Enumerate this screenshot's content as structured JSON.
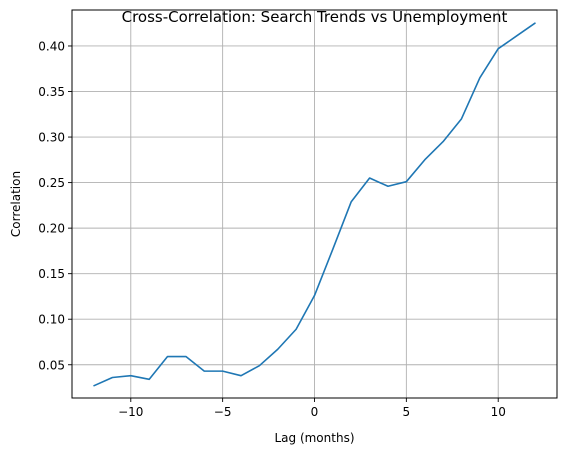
{
  "chart_data": {
    "type": "line",
    "title": "Cross-Correlation: Search Trends vs Unemployment",
    "xlabel": "Lag (months)",
    "ylabel": "Correlation",
    "xlim": [
      -13.2,
      13.2
    ],
    "ylim": [
      0.0135,
      0.4395
    ],
    "xticks": [
      -10,
      -5,
      0,
      5,
      10
    ],
    "xtick_labels": [
      "−10",
      "−5",
      "0",
      "5",
      "10"
    ],
    "yticks": [
      0.05,
      0.1,
      0.15,
      0.2,
      0.25,
      0.3,
      0.35,
      0.4
    ],
    "ytick_labels": [
      "0.05",
      "0.10",
      "0.15",
      "0.20",
      "0.25",
      "0.30",
      "0.35",
      "0.40"
    ],
    "grid": true,
    "color": "#1f77b4",
    "x": [
      -12,
      -11,
      -10,
      -9,
      -8,
      -7,
      -6,
      -5,
      -4,
      -3,
      -2,
      -1,
      0,
      1,
      2,
      3,
      4,
      5,
      6,
      7,
      8,
      9,
      10,
      11,
      12
    ],
    "series": [
      {
        "values": [
          0.027,
          0.036,
          0.038,
          0.034,
          0.059,
          0.059,
          0.043,
          0.043,
          0.038,
          0.049,
          0.067,
          0.089,
          0.126,
          0.177,
          0.229,
          0.255,
          0.246,
          0.251,
          0.275,
          0.295,
          0.32,
          0.365,
          0.397,
          0.411,
          0.425
        ]
      }
    ]
  }
}
